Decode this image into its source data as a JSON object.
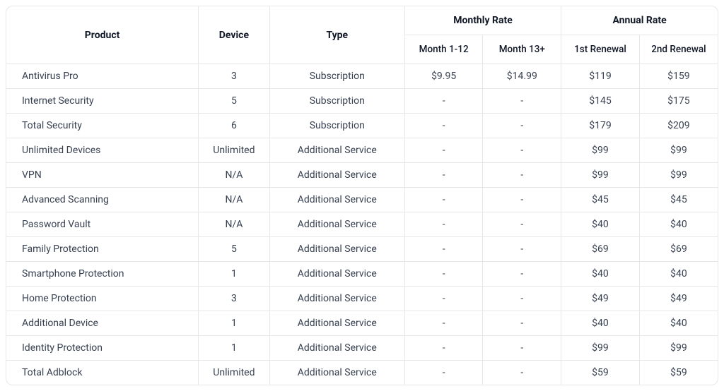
{
  "table": {
    "type": "table",
    "background_color": "#ffffff",
    "border_color": "#e5e7eb",
    "header_text_color": "#111827",
    "body_text_color": "#374151",
    "font_size_body": 14,
    "font_size_header": 14,
    "columns": {
      "product": "Product",
      "device": "Device",
      "type": "Type",
      "monthly_rate": "Monthly Rate",
      "annual_rate": "Annual Rate",
      "month_1_12": "Month 1-12",
      "month_13": "Month 13+",
      "first_renewal": "1st Renewal",
      "second_renewal": "2nd Renewal"
    },
    "rows": [
      {
        "product": "Antivirus Pro",
        "device": "3",
        "type": "Subscription",
        "m1": "$9.95",
        "m13": "$14.99",
        "r1": "$119",
        "r2": "$159"
      },
      {
        "product": "Internet Security",
        "device": "5",
        "type": "Subscription",
        "m1": "-",
        "m13": "-",
        "r1": "$145",
        "r2": "$175"
      },
      {
        "product": "Total Security",
        "device": "6",
        "type": "Subscription",
        "m1": "-",
        "m13": "-",
        "r1": "$179",
        "r2": "$209"
      },
      {
        "product": "Unlimited Devices",
        "device": "Unlimited",
        "type": "Additional Service",
        "m1": "-",
        "m13": "-",
        "r1": "$99",
        "r2": "$99"
      },
      {
        "product": "VPN",
        "device": "N/A",
        "type": "Additional Service",
        "m1": "-",
        "m13": "-",
        "r1": "$99",
        "r2": "$99"
      },
      {
        "product": "Advanced Scanning",
        "device": "N/A",
        "type": "Additional Service",
        "m1": "-",
        "m13": "-",
        "r1": "$45",
        "r2": "$45"
      },
      {
        "product": "Password Vault",
        "device": "N/A",
        "type": "Additional Service",
        "m1": "-",
        "m13": "-",
        "r1": "$40",
        "r2": "$40"
      },
      {
        "product": "Family Protection",
        "device": "5",
        "type": "Additional Service",
        "m1": "-",
        "m13": "-",
        "r1": "$69",
        "r2": "$69"
      },
      {
        "product": "Smartphone Protection",
        "device": "1",
        "type": "Additional Service",
        "m1": "-",
        "m13": "-",
        "r1": "$40",
        "r2": "$40"
      },
      {
        "product": "Home Protection",
        "device": "3",
        "type": "Additional Service",
        "m1": "-",
        "m13": "-",
        "r1": "$49",
        "r2": "$49"
      },
      {
        "product": "Additional Device",
        "device": "1",
        "type": "Additional Service",
        "m1": "-",
        "m13": "-",
        "r1": "$40",
        "r2": "$40"
      },
      {
        "product": "Identity Protection",
        "device": "1",
        "type": "Additional Service",
        "m1": "-",
        "m13": "-",
        "r1": "$99",
        "r2": "$99"
      },
      {
        "product": "Total Adblock",
        "device": "Unlimited",
        "type": "Additional Service",
        "m1": "-",
        "m13": "-",
        "r1": "$59",
        "r2": "$59"
      }
    ]
  }
}
